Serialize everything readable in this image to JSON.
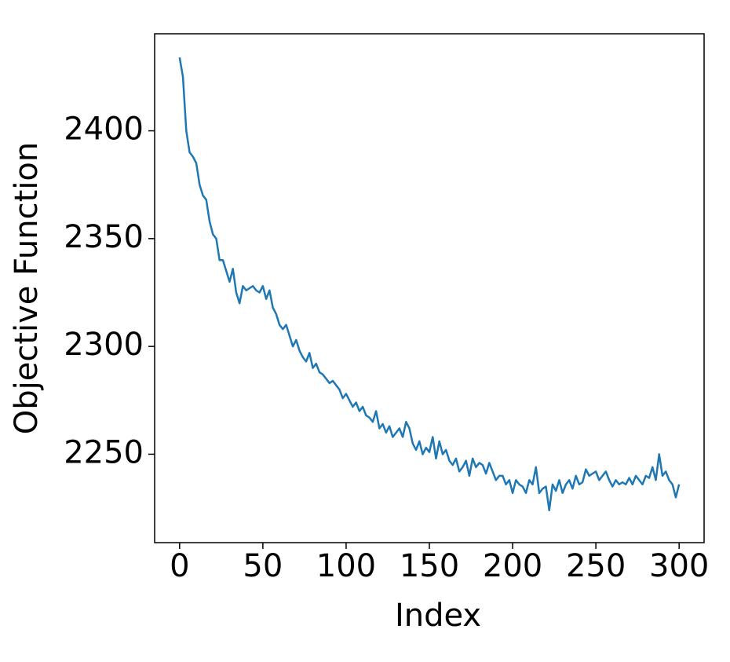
{
  "chart_data": {
    "type": "line",
    "x_label": "Index",
    "y_label": "Objective Function",
    "x": [
      0,
      2,
      4,
      6,
      8,
      10,
      12,
      14,
      16,
      18,
      20,
      22,
      24,
      26,
      28,
      30,
      32,
      34,
      36,
      38,
      40,
      42,
      44,
      46,
      48,
      50,
      52,
      54,
      56,
      58,
      60,
      62,
      64,
      66,
      68,
      70,
      72,
      74,
      76,
      78,
      80,
      82,
      84,
      86,
      88,
      90,
      92,
      94,
      96,
      98,
      100,
      102,
      104,
      106,
      108,
      110,
      112,
      114,
      116,
      118,
      120,
      122,
      124,
      126,
      128,
      130,
      132,
      134,
      136,
      138,
      140,
      142,
      144,
      146,
      148,
      150,
      152,
      154,
      156,
      158,
      160,
      162,
      164,
      166,
      168,
      170,
      172,
      174,
      176,
      178,
      180,
      182,
      184,
      186,
      188,
      190,
      192,
      194,
      196,
      198,
      200,
      202,
      204,
      206,
      208,
      210,
      212,
      214,
      216,
      218,
      220,
      222,
      224,
      226,
      228,
      230,
      232,
      234,
      236,
      238,
      240,
      242,
      244,
      246,
      248,
      250,
      252,
      254,
      256,
      258,
      260,
      262,
      264,
      266,
      268,
      270,
      272,
      274,
      276,
      278,
      280,
      282,
      284,
      286,
      288,
      290,
      292,
      294,
      296,
      298,
      300
    ],
    "series": [
      {
        "name": "objective",
        "color": "#1f77b4",
        "values": [
          2434,
          2425,
          2400,
          2390,
          2388,
          2385,
          2375,
          2370,
          2368,
          2358,
          2352,
          2350,
          2340,
          2340,
          2335,
          2330,
          2336,
          2325,
          2320,
          2328,
          2326,
          2327,
          2328,
          2326,
          2325,
          2328,
          2322,
          2326,
          2318,
          2315,
          2310,
          2308,
          2310,
          2305,
          2300,
          2303,
          2298,
          2295,
          2293,
          2297,
          2290,
          2292,
          2288,
          2287,
          2285,
          2283,
          2284,
          2282,
          2280,
          2276,
          2278,
          2275,
          2272,
          2274,
          2270,
          2272,
          2268,
          2267,
          2265,
          2270,
          2262,
          2264,
          2260,
          2263,
          2258,
          2260,
          2262,
          2258,
          2265,
          2262,
          2255,
          2252,
          2256,
          2250,
          2253,
          2251,
          2258,
          2248,
          2256,
          2250,
          2252,
          2247,
          2245,
          2248,
          2242,
          2244,
          2247,
          2240,
          2248,
          2244,
          2246,
          2245,
          2241,
          2246,
          2242,
          2238,
          2240,
          2240,
          2236,
          2238,
          2232,
          2238,
          2236,
          2235,
          2232,
          2238,
          2236,
          2244,
          2232,
          2234,
          2235,
          2224,
          2236,
          2233,
          2238,
          2232,
          2236,
          2238,
          2234,
          2240,
          2236,
          2237,
          2243,
          2240,
          2241,
          2242,
          2238,
          2240,
          2242,
          2238,
          2235,
          2238,
          2236,
          2237,
          2236,
          2239,
          2236,
          2240,
          2238,
          2236,
          2240,
          2239,
          2244,
          2238,
          2250,
          2240,
          2242,
          2238,
          2236,
          2230,
          2236
        ]
      }
    ],
    "xlim": [
      -15,
      315
    ],
    "ylim": [
      2209,
      2445
    ],
    "xticks": [
      0,
      50,
      100,
      150,
      200,
      250,
      300
    ],
    "yticks": [
      2250,
      2300,
      2350,
      2400
    ]
  }
}
